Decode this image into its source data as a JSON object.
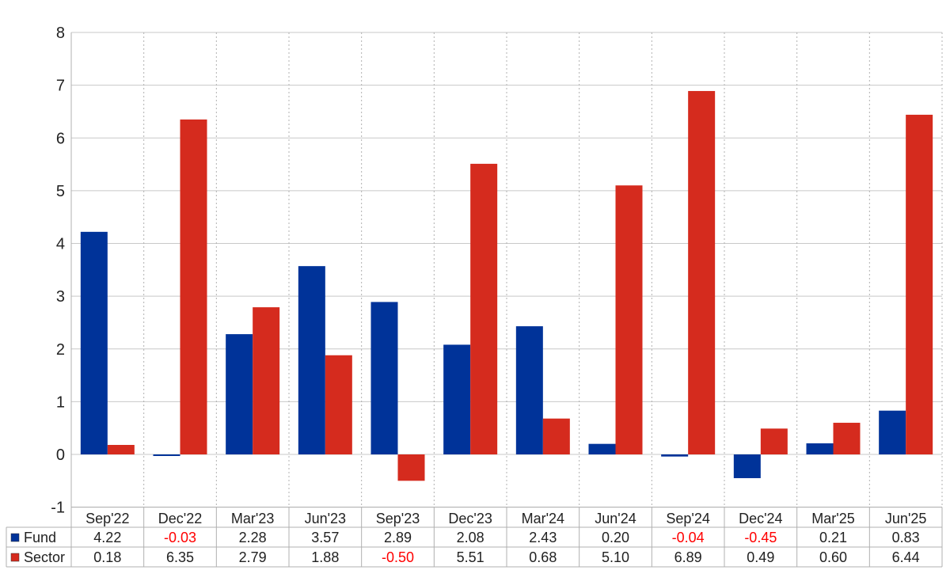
{
  "chart_data": {
    "type": "bar",
    "categories": [
      "Sep'22",
      "Dec'22",
      "Mar'23",
      "Jun'23",
      "Sep'23",
      "Dec'23",
      "Mar'24",
      "Jun'24",
      "Sep'24",
      "Dec'24",
      "Mar'25",
      "Jun'25"
    ],
    "series": [
      {
        "name": "Fund",
        "color": "#003399",
        "values": [
          4.22,
          -0.03,
          2.28,
          3.57,
          2.89,
          2.08,
          2.43,
          0.2,
          -0.04,
          -0.45,
          0.21,
          0.83
        ],
        "labels": [
          "4.22",
          "-0.03",
          "2.28",
          "3.57",
          "2.89",
          "2.08",
          "2.43",
          "0.20",
          "-0.04",
          "-0.45",
          "0.21",
          "0.83"
        ]
      },
      {
        "name": "Sector",
        "color": "#d52b1e",
        "values": [
          0.18,
          6.35,
          2.79,
          1.88,
          -0.5,
          5.51,
          0.68,
          5.1,
          6.89,
          0.49,
          0.6,
          6.44
        ],
        "labels": [
          "0.18",
          "6.35",
          "2.79",
          "1.88",
          "-0.50",
          "5.51",
          "0.68",
          "5.10",
          "6.89",
          "0.49",
          "0.60",
          "6.44"
        ]
      }
    ],
    "ylim": [
      -1,
      8
    ],
    "yticks": [
      "-1",
      "0",
      "1",
      "2",
      "3",
      "4",
      "5",
      "6",
      "7",
      "8"
    ],
    "negative_color": "#ff0000",
    "grid": true,
    "legend": "table-below"
  }
}
